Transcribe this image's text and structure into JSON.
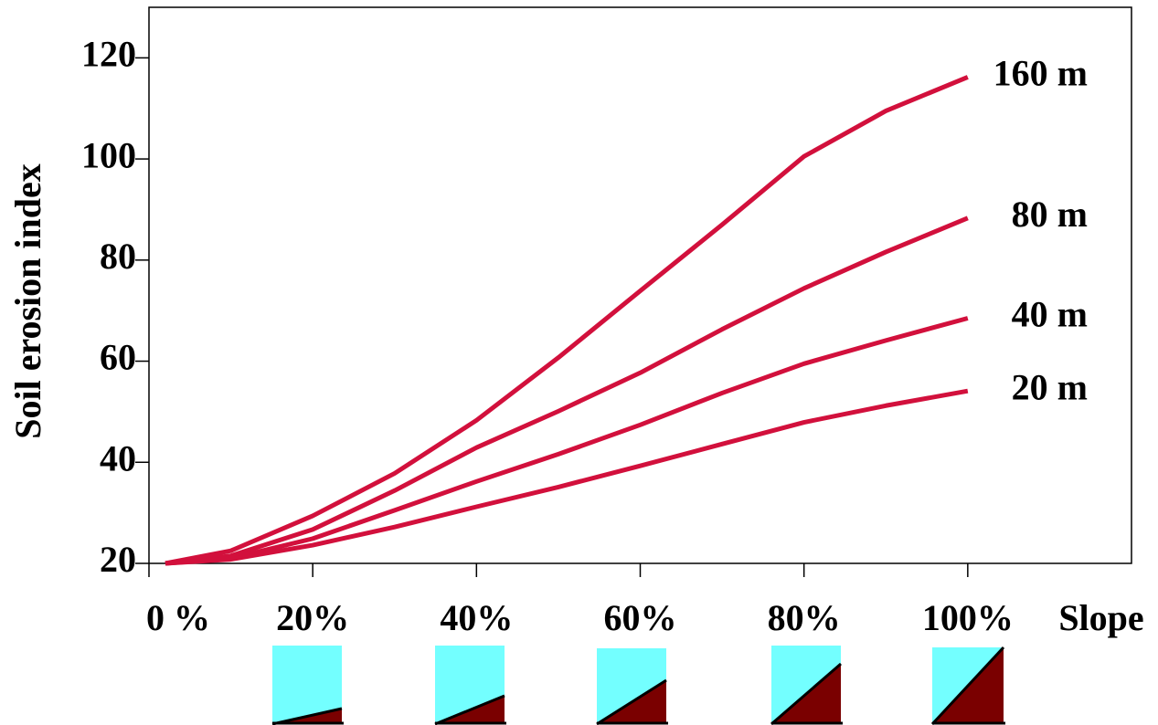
{
  "chart_data": {
    "type": "line",
    "y_label": "Soil erosion index",
    "x_label": "Slope",
    "x": [
      2,
      10,
      20,
      30,
      40,
      50,
      60,
      70,
      80,
      90,
      100
    ],
    "series": [
      {
        "name": "160 m",
        "color": "#d2103c",
        "values": [
          20,
          22.5,
          29.4,
          37.8,
          48.3,
          60.7,
          73.9,
          87,
          100.5,
          109.5,
          116.2
        ]
      },
      {
        "name": "80 m",
        "color": "#d2103c",
        "values": [
          20,
          21.5,
          26.7,
          34.4,
          42.9,
          50.1,
          57.7,
          66.3,
          74.4,
          81.6,
          88.3
        ]
      },
      {
        "name": "40 m",
        "color": "#d2103c",
        "values": [
          20,
          21,
          24.9,
          30.5,
          36.2,
          41.6,
          47.4,
          53.7,
          59.5,
          64.1,
          68.5
        ]
      },
      {
        "name": "20 m",
        "color": "#d2103c",
        "values": [
          20,
          20.8,
          23.6,
          27.2,
          31.2,
          35.1,
          39.3,
          43.6,
          47.9,
          51.2,
          54.1
        ]
      }
    ],
    "xlim": [
      0,
      120
    ],
    "ylim": [
      20,
      130
    ],
    "xticks": [
      {
        "value": 0,
        "label": "0 %"
      },
      {
        "value": 20,
        "label": "20%"
      },
      {
        "value": 40,
        "label": "40%"
      },
      {
        "value": 60,
        "label": "60%"
      },
      {
        "value": 80,
        "label": "80%"
      },
      {
        "value": 100,
        "label": "100%"
      }
    ],
    "yticks": [
      20,
      40,
      60,
      80,
      100,
      120
    ],
    "grid": false
  }
}
